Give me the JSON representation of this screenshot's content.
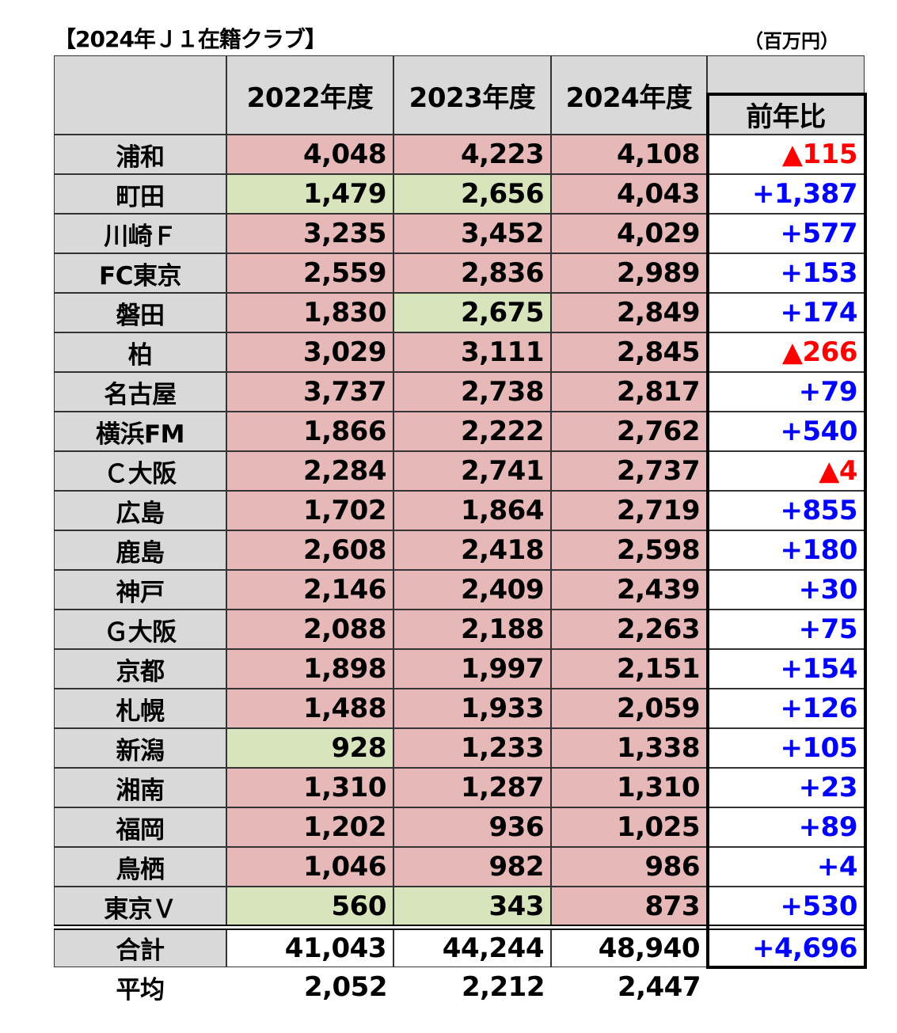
{
  "title": "【2024年Ｊ１在籍クラブ】",
  "unit": "（百万円）",
  "headers": {
    "years": [
      "2022年度",
      "2023年度",
      "2024年度"
    ],
    "change": "前年比"
  },
  "colors": {
    "pink": "#e6b8b7",
    "green": "#d8e4bc",
    "header": "#d9d9d9",
    "increase": "#0000ff",
    "decrease": "#ff0000"
  },
  "rows": [
    {
      "club": "浦和",
      "values": [
        "4,048",
        "4,223",
        "4,108"
      ],
      "fill": [
        "pink",
        "pink",
        "pink"
      ],
      "change": "▲115",
      "dir": "neg"
    },
    {
      "club": "町田",
      "values": [
        "1,479",
        "2,656",
        "4,043"
      ],
      "fill": [
        "green",
        "green",
        "pink"
      ],
      "change": "+1,387",
      "dir": "pos"
    },
    {
      "club": "川崎Ｆ",
      "values": [
        "3,235",
        "3,452",
        "4,029"
      ],
      "fill": [
        "pink",
        "pink",
        "pink"
      ],
      "change": "+577",
      "dir": "pos"
    },
    {
      "club": "FC東京",
      "values": [
        "2,559",
        "2,836",
        "2,989"
      ],
      "fill": [
        "pink",
        "pink",
        "pink"
      ],
      "change": "+153",
      "dir": "pos"
    },
    {
      "club": "磐田",
      "values": [
        "1,830",
        "2,675",
        "2,849"
      ],
      "fill": [
        "pink",
        "green",
        "pink"
      ],
      "change": "+174",
      "dir": "pos"
    },
    {
      "club": "柏",
      "values": [
        "3,029",
        "3,111",
        "2,845"
      ],
      "fill": [
        "pink",
        "pink",
        "pink"
      ],
      "change": "▲266",
      "dir": "neg"
    },
    {
      "club": "名古屋",
      "values": [
        "3,737",
        "2,738",
        "2,817"
      ],
      "fill": [
        "pink",
        "pink",
        "pink"
      ],
      "change": "+79",
      "dir": "pos"
    },
    {
      "club": "横浜FM",
      "values": [
        "1,866",
        "2,222",
        "2,762"
      ],
      "fill": [
        "pink",
        "pink",
        "pink"
      ],
      "change": "+540",
      "dir": "pos"
    },
    {
      "club": "Ｃ大阪",
      "values": [
        "2,284",
        "2,741",
        "2,737"
      ],
      "fill": [
        "pink",
        "pink",
        "pink"
      ],
      "change": "▲4",
      "dir": "neg"
    },
    {
      "club": "広島",
      "values": [
        "1,702",
        "1,864",
        "2,719"
      ],
      "fill": [
        "pink",
        "pink",
        "pink"
      ],
      "change": "+855",
      "dir": "pos"
    },
    {
      "club": "鹿島",
      "values": [
        "2,608",
        "2,418",
        "2,598"
      ],
      "fill": [
        "pink",
        "pink",
        "pink"
      ],
      "change": "+180",
      "dir": "pos"
    },
    {
      "club": "神戸",
      "values": [
        "2,146",
        "2,409",
        "2,439"
      ],
      "fill": [
        "pink",
        "pink",
        "pink"
      ],
      "change": "+30",
      "dir": "pos"
    },
    {
      "club": "Ｇ大阪",
      "values": [
        "2,088",
        "2,188",
        "2,263"
      ],
      "fill": [
        "pink",
        "pink",
        "pink"
      ],
      "change": "+75",
      "dir": "pos"
    },
    {
      "club": "京都",
      "values": [
        "1,898",
        "1,997",
        "2,151"
      ],
      "fill": [
        "pink",
        "pink",
        "pink"
      ],
      "change": "+154",
      "dir": "pos"
    },
    {
      "club": "札幌",
      "values": [
        "1,488",
        "1,933",
        "2,059"
      ],
      "fill": [
        "pink",
        "pink",
        "pink"
      ],
      "change": "+126",
      "dir": "pos"
    },
    {
      "club": "新潟",
      "values": [
        "928",
        "1,233",
        "1,338"
      ],
      "fill": [
        "green",
        "pink",
        "pink"
      ],
      "change": "+105",
      "dir": "pos"
    },
    {
      "club": "湘南",
      "values": [
        "1,310",
        "1,287",
        "1,310"
      ],
      "fill": [
        "pink",
        "pink",
        "pink"
      ],
      "change": "+23",
      "dir": "pos"
    },
    {
      "club": "福岡",
      "values": [
        "1,202",
        "936",
        "1,025"
      ],
      "fill": [
        "pink",
        "pink",
        "pink"
      ],
      "change": "+89",
      "dir": "pos"
    },
    {
      "club": "鳥栖",
      "values": [
        "1,046",
        "982",
        "986"
      ],
      "fill": [
        "pink",
        "pink",
        "pink"
      ],
      "change": "+4",
      "dir": "pos"
    },
    {
      "club": "東京Ｖ",
      "values": [
        "560",
        "343",
        "873"
      ],
      "fill": [
        "green",
        "green",
        "pink"
      ],
      "change": "+530",
      "dir": "pos"
    }
  ],
  "total": {
    "label": "合計",
    "values": [
      "41,043",
      "44,244",
      "48,940"
    ],
    "change": "+4,696"
  },
  "average": {
    "label": "平均",
    "values": [
      "2,052",
      "2,212",
      "2,447"
    ]
  }
}
